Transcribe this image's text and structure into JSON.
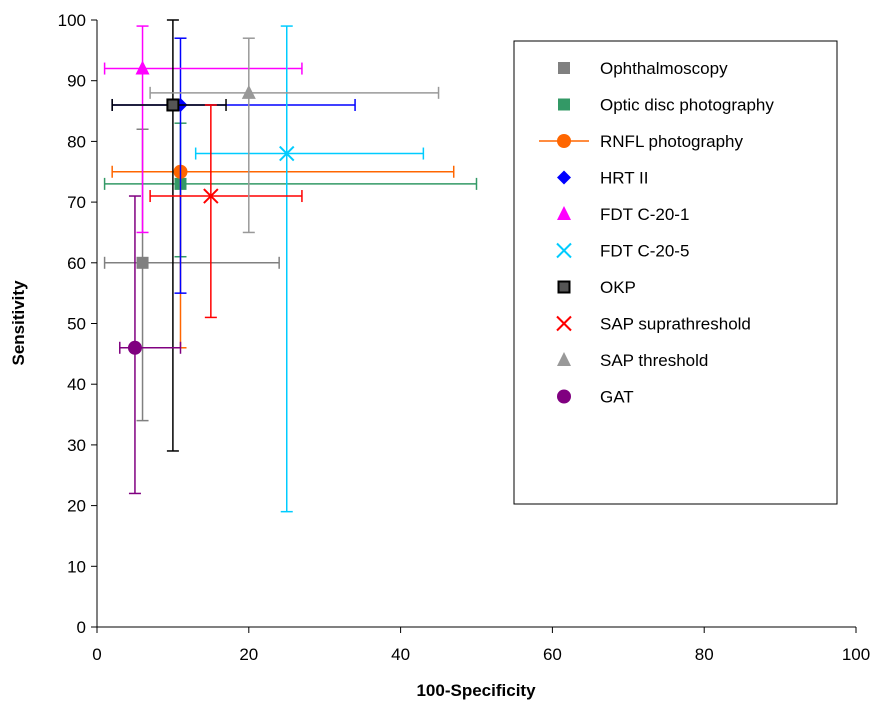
{
  "chart_data": {
    "type": "scatter",
    "title": "",
    "xlabel": "100-Specificity",
    "ylabel": "Sensitivity",
    "xlim": [
      0,
      100
    ],
    "ylim": [
      0,
      100
    ],
    "x_ticks": [
      0,
      20,
      40,
      60,
      80,
      100
    ],
    "y_ticks": [
      0,
      10,
      20,
      30,
      40,
      50,
      60,
      70,
      80,
      90,
      100
    ],
    "grid": false,
    "error_bars": true,
    "legend_position": "right",
    "series": [
      {
        "name": "Ophthalmoscopy",
        "color": "#808080",
        "marker": "square",
        "x": 6,
        "y": 60,
        "x_err": [
          1,
          24
        ],
        "y_err": [
          34,
          82
        ]
      },
      {
        "name": "Optic disc photography",
        "color": "#339966",
        "marker": "square",
        "x": 11,
        "y": 73,
        "x_err": [
          1,
          50
        ],
        "y_err": [
          61,
          83
        ]
      },
      {
        "name": "RNFL photography",
        "color": "#FF6600",
        "marker": "circle",
        "x": 11,
        "y": 75,
        "x_err": [
          2,
          47
        ],
        "y_err": [
          46,
          75
        ],
        "legend_line": true
      },
      {
        "name": "HRT II",
        "color": "#0000FF",
        "marker": "diamond",
        "x": 11,
        "y": 86,
        "x_err": [
          2,
          34
        ],
        "y_err": [
          55,
          97
        ]
      },
      {
        "name": "FDT C-20-1",
        "color": "#FF00FF",
        "marker": "triangle",
        "x": 6,
        "y": 92,
        "x_err": [
          1,
          27
        ],
        "y_err": [
          65,
          99
        ]
      },
      {
        "name": "FDT C-20-5",
        "color": "#00CCFF",
        "marker": "x",
        "x": 25,
        "y": 78,
        "x_err": [
          13,
          43
        ],
        "y_err": [
          19,
          99
        ]
      },
      {
        "name": "OKP",
        "color": "#000000",
        "marker": "square-outline",
        "x": 10,
        "y": 86,
        "x_err": [
          2,
          17
        ],
        "y_err": [
          29,
          100
        ]
      },
      {
        "name": "SAP suprathreshold",
        "color": "#FF0000",
        "marker": "x",
        "x": 15,
        "y": 71,
        "x_err": [
          7,
          27
        ],
        "y_err": [
          51,
          86
        ]
      },
      {
        "name": "SAP threshold",
        "color": "#999999",
        "marker": "triangle",
        "x": 20,
        "y": 88,
        "x_err": [
          7,
          45
        ],
        "y_err": [
          65,
          97
        ]
      },
      {
        "name": "GAT",
        "color": "#800080",
        "marker": "circle",
        "x": 5,
        "y": 46,
        "x_err": [
          3,
          11
        ],
        "y_err": [
          22,
          71
        ]
      }
    ]
  }
}
